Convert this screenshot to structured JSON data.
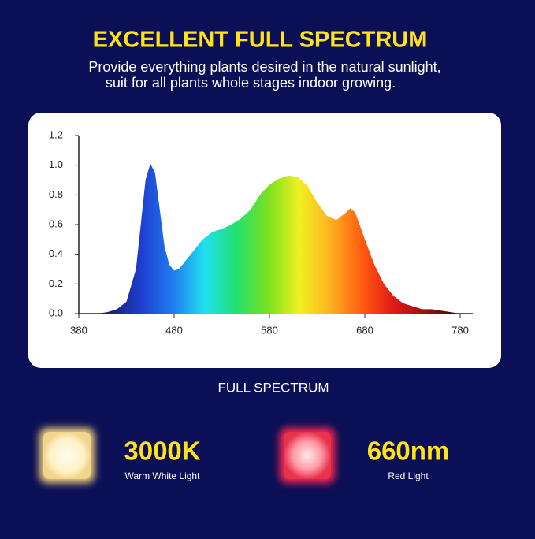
{
  "header": {
    "title": "EXCELLENT FULL SPECTRUM",
    "subtitle_lines": [
      "Provide everything plants desired in the natural sunlight,",
      "suit for all plants whole stages indoor growing."
    ]
  },
  "chart_data": {
    "type": "area",
    "x_label": "FULL SPECTRUM",
    "x": [
      400,
      410,
      420,
      430,
      440,
      445,
      450,
      455,
      460,
      465,
      470,
      475,
      480,
      485,
      490,
      500,
      510,
      520,
      530,
      540,
      550,
      560,
      570,
      580,
      590,
      600,
      610,
      620,
      630,
      640,
      650,
      660,
      665,
      670,
      680,
      690,
      700,
      710,
      720,
      730,
      740,
      750,
      760,
      770,
      780
    ],
    "values": [
      0,
      0.01,
      0.03,
      0.08,
      0.3,
      0.6,
      0.9,
      1.01,
      0.95,
      0.7,
      0.45,
      0.33,
      0.29,
      0.3,
      0.34,
      0.42,
      0.5,
      0.55,
      0.57,
      0.6,
      0.64,
      0.7,
      0.8,
      0.87,
      0.91,
      0.93,
      0.92,
      0.86,
      0.75,
      0.66,
      0.63,
      0.68,
      0.71,
      0.68,
      0.5,
      0.33,
      0.2,
      0.12,
      0.07,
      0.05,
      0.03,
      0.03,
      0.02,
      0.01,
      0
    ],
    "colors": [
      "#1a1f7a",
      "#1e3fd0",
      "#1f7cf0",
      "#20e0f0",
      "#22e070",
      "#7ae020",
      "#f0f020",
      "#ffb020",
      "#ff5a10",
      "#e01818",
      "#9a0f10",
      "#3a0a08"
    ],
    "xlim": [
      380,
      780
    ],
    "xticks": [
      380,
      480,
      580,
      680,
      780
    ],
    "ylim": [
      0,
      1.2
    ],
    "yticks": [
      {
        "value": 0,
        "label": "0.0"
      },
      0.2,
      0.4,
      0.6,
      0.8,
      {
        "value": 1,
        "label": "1.0"
      },
      1.2
    ]
  },
  "features": [
    {
      "value": "3000K",
      "label": "Warm White Light"
    },
    {
      "value": "660nm",
      "label": "Red Light"
    }
  ]
}
